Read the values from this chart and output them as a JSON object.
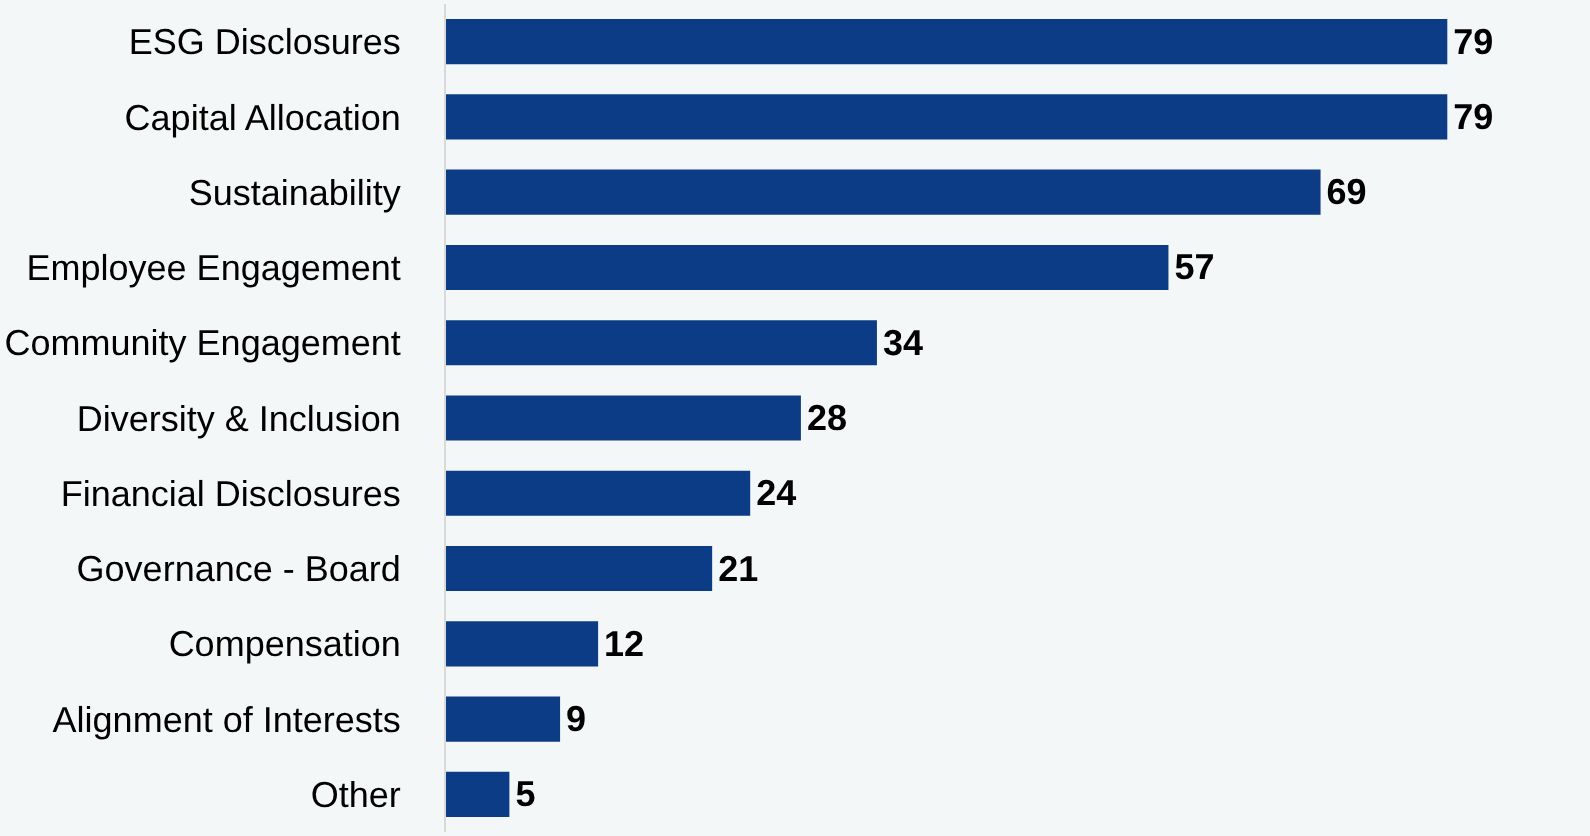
{
  "chart_data": {
    "type": "bar",
    "orientation": "horizontal",
    "categories": [
      "ESG Disclosures",
      "Capital Allocation",
      "Sustainability",
      "Employee Engagement",
      "Community Engagement",
      "Diversity & Inclusion",
      "Financial Disclosures",
      "Governance - Board",
      "Compensation",
      "Alignment of Interests",
      "Other"
    ],
    "values": [
      79,
      79,
      69,
      57,
      34,
      28,
      24,
      21,
      12,
      9,
      5
    ],
    "color": "#0c3c85",
    "data_labels": true
  }
}
